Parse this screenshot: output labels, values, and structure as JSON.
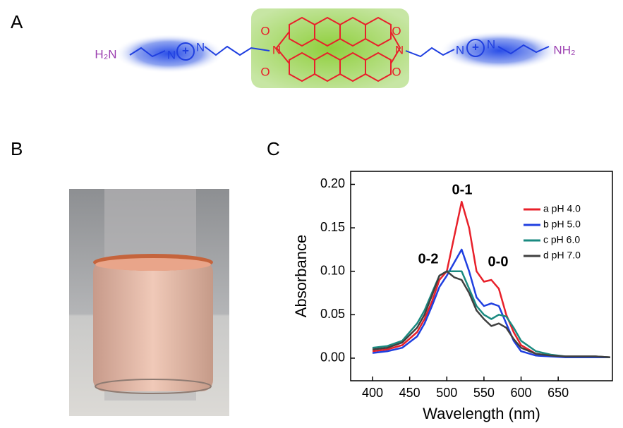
{
  "panels": [
    "A",
    "B",
    "C"
  ],
  "structure": {
    "labels": [
      "H₂N",
      "N",
      "+",
      "N",
      "O",
      "N",
      "O",
      "O",
      "N",
      "O",
      "N",
      "+",
      "N",
      "NH₂"
    ]
  },
  "chart_data": {
    "type": "line",
    "x_label": "Wavelength (nm)",
    "y_label": "Absorbance",
    "x": [
      400,
      420,
      440,
      460,
      470,
      480,
      490,
      500,
      510,
      520,
      530,
      540,
      550,
      560,
      570,
      580,
      590,
      600,
      620,
      640,
      660,
      680,
      700,
      720
    ],
    "series": [
      {
        "name": "a pH 4.0",
        "color": "#e8202a",
        "values": [
          0.008,
          0.01,
          0.015,
          0.03,
          0.045,
          0.065,
          0.09,
          0.1,
          0.14,
          0.18,
          0.15,
          0.1,
          0.088,
          0.09,
          0.08,
          0.05,
          0.03,
          0.015,
          0.005,
          0.003,
          0.002,
          0.002,
          0.002,
          0.001
        ]
      },
      {
        "name": "b pH 5.0",
        "color": "#1f3fe0",
        "values": [
          0.006,
          0.008,
          0.012,
          0.025,
          0.04,
          0.06,
          0.082,
          0.095,
          0.11,
          0.125,
          0.1,
          0.07,
          0.06,
          0.063,
          0.06,
          0.04,
          0.02,
          0.008,
          0.003,
          0.002,
          0.001,
          0.001,
          0.001,
          0.001
        ]
      },
      {
        "name": "c pH 6.0",
        "color": "#1a8a80",
        "values": [
          0.012,
          0.014,
          0.02,
          0.04,
          0.055,
          0.075,
          0.095,
          0.1,
          0.1,
          0.1,
          0.08,
          0.06,
          0.05,
          0.045,
          0.05,
          0.048,
          0.035,
          0.02,
          0.008,
          0.004,
          0.002,
          0.002,
          0.002,
          0.001
        ]
      },
      {
        "name": "d pH 7.0",
        "color": "#404040",
        "values": [
          0.01,
          0.012,
          0.018,
          0.035,
          0.05,
          0.072,
          0.095,
          0.1,
          0.093,
          0.09,
          0.075,
          0.055,
          0.045,
          0.037,
          0.04,
          0.035,
          0.022,
          0.012,
          0.005,
          0.003,
          0.002,
          0.002,
          0.002,
          0.001
        ]
      }
    ],
    "annotations": [
      "0-1",
      "0-2",
      "0-0"
    ],
    "xlim": [
      370.5,
      723
    ],
    "ylim": [
      -0.026,
      0.215
    ],
    "xticks": [
      400,
      450,
      500,
      550,
      600,
      650
    ],
    "yticks": [
      {
        "value": 0,
        "label": "0.00"
      },
      {
        "value": 0.05,
        "label": "0.05"
      },
      {
        "value": 0.1,
        "label": "0.10"
      },
      {
        "value": 0.15,
        "label": "0.15"
      },
      {
        "value": 0.2,
        "label": "0.20"
      }
    ],
    "legend": "upper right"
  }
}
